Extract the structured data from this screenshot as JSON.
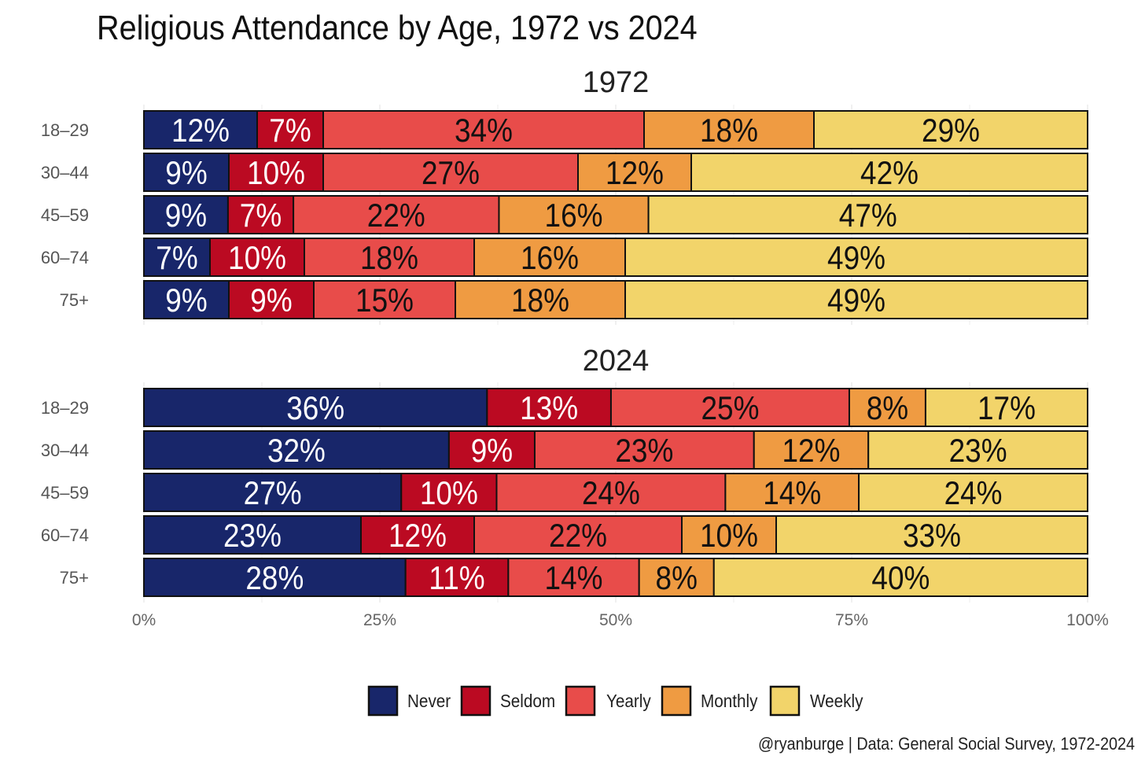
{
  "chart_data": [
    {
      "type": "bar",
      "orientation": "horizontal",
      "stacked": "percent",
      "title": "Religious Attendance by Age, 1972 vs 2024",
      "facet_title": "1972",
      "categories": [
        "18–29",
        "30–44",
        "45–59",
        "60–74",
        "75+"
      ],
      "series": [
        {
          "name": "Never",
          "values": [
            12,
            9,
            9,
            7,
            9
          ]
        },
        {
          "name": "Seldom",
          "values": [
            7,
            10,
            7,
            10,
            9
          ]
        },
        {
          "name": "Yearly",
          "values": [
            34,
            27,
            22,
            18,
            15
          ]
        },
        {
          "name": "Monthly",
          "values": [
            18,
            12,
            16,
            16,
            18
          ]
        },
        {
          "name": "Weekly",
          "values": [
            29,
            42,
            47,
            49,
            49
          ]
        }
      ],
      "xlim": [
        0,
        100
      ],
      "x_ticks": [
        "0%",
        "25%",
        "50%",
        "75%",
        "100%"
      ],
      "grid": true,
      "legend": "bottom"
    },
    {
      "type": "bar",
      "orientation": "horizontal",
      "stacked": "percent",
      "facet_title": "2024",
      "categories": [
        "18–29",
        "30–44",
        "45–59",
        "60–74",
        "75+"
      ],
      "series": [
        {
          "name": "Never",
          "values": [
            36,
            32,
            27,
            23,
            28
          ]
        },
        {
          "name": "Seldom",
          "values": [
            13,
            9,
            10,
            12,
            11
          ]
        },
        {
          "name": "Yearly",
          "values": [
            25,
            23,
            24,
            22,
            14
          ]
        },
        {
          "name": "Monthly",
          "values": [
            8,
            12,
            14,
            10,
            8
          ]
        },
        {
          "name": "Weekly",
          "values": [
            17,
            23,
            24,
            33,
            40
          ]
        }
      ],
      "xlim": [
        0,
        100
      ],
      "x_ticks": [
        "0%",
        "25%",
        "50%",
        "75%",
        "100%"
      ],
      "grid": true,
      "legend": "bottom"
    }
  ],
  "colors": {
    "Never": "#18266a",
    "Seldom": "#bb0a22",
    "Yearly": "#e84c4a",
    "Monthly": "#ef9b42",
    "Weekly": "#f2d46a"
  },
  "label_colors": {
    "Never": "#ffffff",
    "Seldom": "#ffffff",
    "Yearly": "#111111",
    "Monthly": "#111111",
    "Weekly": "#111111"
  },
  "caption": "@ryanburge | Data: General Social Survey, 1972-2024"
}
